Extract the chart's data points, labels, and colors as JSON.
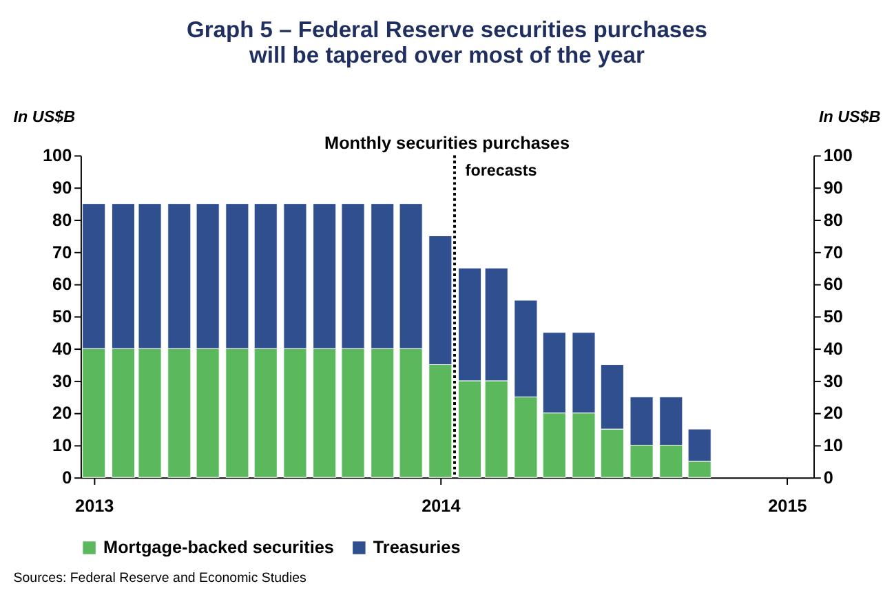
{
  "chart_data": {
    "type": "bar",
    "stacked": true,
    "title": "Graph 5 – Federal Reserve securities purchases will be tapered over most of the year",
    "subtitle": "Monthly securities purchases",
    "ylabel": "In US$B",
    "y2label": "In US$B",
    "x": [
      "2013-01",
      "2013-02",
      "2013-03",
      "2013-04",
      "2013-05",
      "2013-06",
      "2013-07",
      "2013-08",
      "2013-09",
      "2013-10",
      "2013-11",
      "2013-12",
      "2014-01",
      "2014-02",
      "2014-03",
      "2014-04",
      "2014-05",
      "2014-06",
      "2014-07",
      "2014-08",
      "2014-09",
      "2014-10"
    ],
    "series": [
      {
        "name": "Mortgage-backed securities",
        "color": "#5cb85c",
        "values": [
          40,
          40,
          40,
          40,
          40,
          40,
          40,
          40,
          40,
          40,
          40,
          40,
          35,
          30,
          30,
          25,
          20,
          20,
          15,
          10,
          10,
          5
        ]
      },
      {
        "name": "Treasuries",
        "color": "#2f4f8f",
        "values": [
          45,
          45,
          45,
          45,
          45,
          45,
          45,
          45,
          45,
          45,
          45,
          45,
          40,
          35,
          35,
          30,
          25,
          25,
          20,
          15,
          15,
          10
        ]
      }
    ],
    "xlim": [
      "2012-12-18",
      "2015-01-29"
    ],
    "xticks": [
      {
        "value": "2013-01-01",
        "label": "2013"
      },
      {
        "value": "2014-01-01",
        "label": "2014"
      },
      {
        "value": "2015-01-01",
        "label": "2015"
      }
    ],
    "ylim": [
      0,
      100
    ],
    "yticks": [
      0,
      10,
      20,
      30,
      40,
      50,
      60,
      70,
      80,
      90,
      100
    ],
    "y2lim": [
      0,
      100
    ],
    "y2ticks": [
      0,
      10,
      20,
      30,
      40,
      50,
      60,
      70,
      80,
      90,
      100
    ],
    "ref_lines": [
      {
        "axis": "x",
        "value": "2014-01-16",
        "label": "forecasts",
        "line_style": "dotted",
        "color": "#000000"
      }
    ],
    "legend": "bottom",
    "grid": false,
    "annotations": [
      "Sources: Federal Reserve and Economic Studies"
    ]
  }
}
